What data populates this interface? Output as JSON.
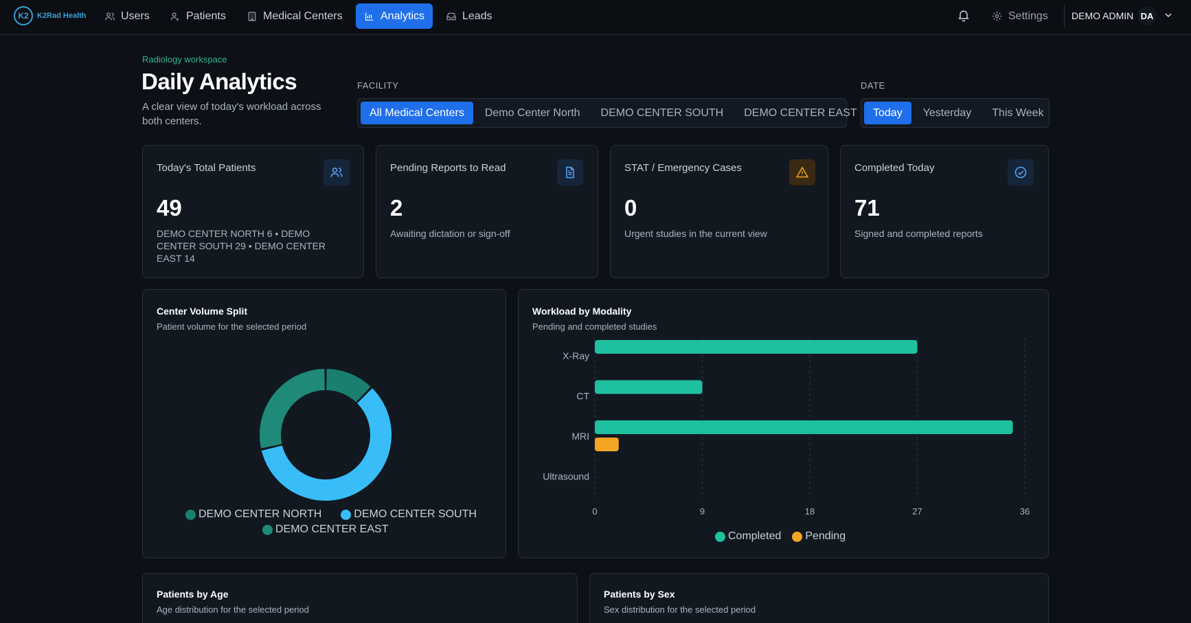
{
  "nav": {
    "logo_text": "K2Rad Health",
    "items": [
      {
        "label": "Users",
        "icon": "users-icon",
        "active": false
      },
      {
        "label": "Patients",
        "icon": "patient-icon",
        "active": false
      },
      {
        "label": "Medical Centers",
        "icon": "building-icon",
        "active": false
      },
      {
        "label": "Analytics",
        "icon": "bar-chart-icon",
        "active": true
      },
      {
        "label": "Leads",
        "icon": "inbox-icon",
        "active": false
      }
    ],
    "settings_label": "Settings",
    "user_name": "DEMO ADMIN",
    "avatar_initials": "DA"
  },
  "header": {
    "eyebrow": "Radiology workspace",
    "title": "Daily Analytics",
    "description": "A clear view of today's workload across both centers."
  },
  "filters": {
    "facility_label": "FACILITY",
    "facility_options": [
      "All Medical Centers",
      "Demo Center North",
      "DEMO CENTER SOUTH",
      "DEMO CENTER EAST"
    ],
    "facility_selected": "All Medical Centers",
    "date_label": "DATE",
    "date_options": [
      "Today",
      "Yesterday",
      "This Week"
    ],
    "date_selected": "Today"
  },
  "kpis": [
    {
      "title": "Today's Total Patients",
      "value": "49",
      "note": "DEMO CENTER NORTH 6 • DEMO CENTER SOUTH 29 • DEMO CENTER EAST 14",
      "icon": "users-icon",
      "accent": "#58a6ff"
    },
    {
      "title": "Pending Reports to Read",
      "value": "2",
      "note": "Awaiting dictation or sign-off",
      "icon": "document-icon",
      "accent": "#58a6ff"
    },
    {
      "title": "STAT / Emergency Cases",
      "value": "0",
      "note": "Urgent studies in the current view",
      "icon": "warning-icon",
      "accent": "#f5a524"
    },
    {
      "title": "Completed Today",
      "value": "71",
      "note": "Signed and completed reports",
      "icon": "check-circle-icon",
      "accent": "#58a6ff"
    }
  ],
  "center_split": {
    "title": "Center Volume Split",
    "subtitle": "Patient volume for the selected period",
    "legend": [
      "DEMO CENTER NORTH",
      "DEMO CENTER SOUTH",
      "DEMO CENTER EAST"
    ]
  },
  "modality": {
    "title": "Workload by Modality",
    "subtitle": "Pending and completed studies",
    "legend": [
      "Completed",
      "Pending"
    ]
  },
  "age_card": {
    "title": "Patients by Age",
    "subtitle": "Age distribution for the selected period"
  },
  "sex_card": {
    "title": "Patients by Sex",
    "subtitle": "Sex distribution for the selected period"
  },
  "chart_data": [
    {
      "type": "pie",
      "categories": [
        "DEMO CENTER NORTH",
        "DEMO CENTER SOUTH",
        "DEMO CENTER EAST"
      ],
      "values": [
        6,
        29,
        14
      ],
      "colors": [
        "#1a7f6f",
        "#38bdf8",
        "#1f8a77"
      ],
      "donut": true
    },
    {
      "type": "bar",
      "orientation": "horizontal",
      "categories": [
        "X-Ray",
        "CT",
        "MRI",
        "Ultrasound"
      ],
      "series": [
        {
          "name": "Completed",
          "values": [
            27,
            9,
            35,
            0
          ],
          "color": "#1fc0a0"
        },
        {
          "name": "Pending",
          "values": [
            0,
            0,
            2,
            0
          ],
          "color": "#f5a524"
        }
      ],
      "xticks": [
        0,
        9,
        18,
        27,
        36
      ],
      "xlim": [
        0,
        36
      ],
      "legend_position": "bottom"
    }
  ]
}
